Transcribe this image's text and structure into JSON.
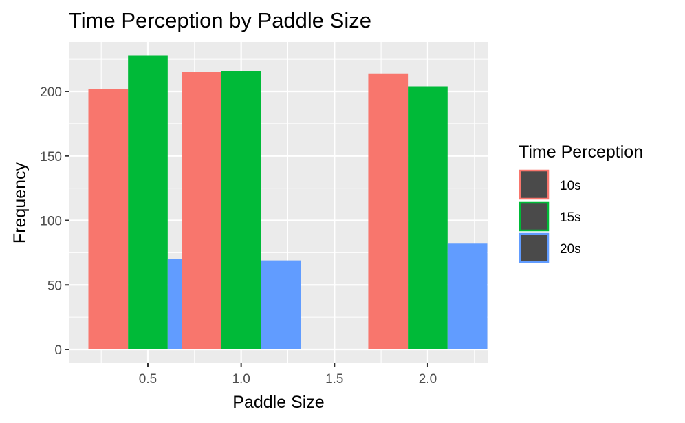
{
  "chart_data": {
    "type": "bar",
    "title": "Time Perception by Paddle Size",
    "xlabel": "Paddle Size",
    "ylabel": "Frequency",
    "categories": [
      0.5,
      1.0,
      2.0
    ],
    "x_ticks": [
      "0.5",
      "1.0",
      "1.5",
      "2.0"
    ],
    "y_ticks": [
      "0",
      "50",
      "100",
      "150",
      "200"
    ],
    "xlim": [
      0.25,
      2.25
    ],
    "ylim": [
      0,
      230
    ],
    "grid": true,
    "legend": {
      "title": "Time Perception",
      "position": "right"
    },
    "series": [
      {
        "name": "10s",
        "color": "#F8766D",
        "values": [
          202,
          215,
          214
        ]
      },
      {
        "name": "15s",
        "color": "#00BA38",
        "values": [
          228,
          216,
          204
        ]
      },
      {
        "name": "20s",
        "color": "#619CFF",
        "values": [
          70,
          69,
          82
        ]
      }
    ]
  }
}
